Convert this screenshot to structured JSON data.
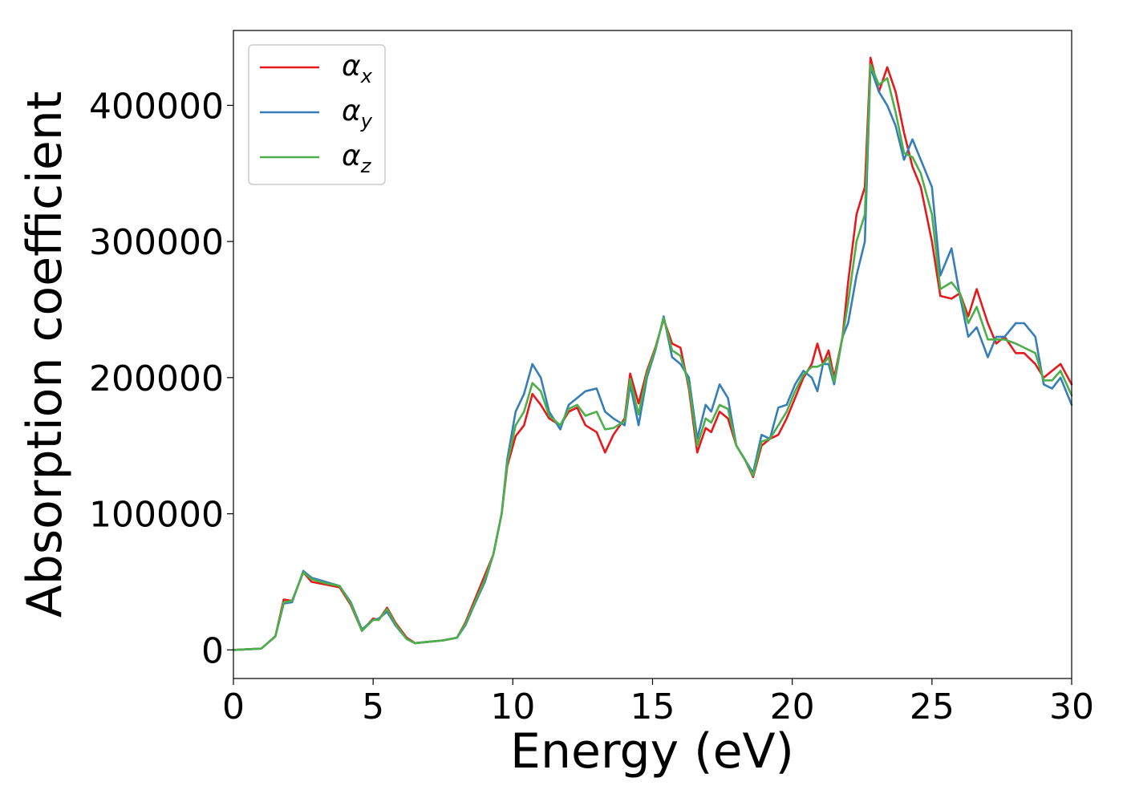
{
  "chart_data": {
    "type": "line",
    "title": "",
    "xlabel": "Energy (eV)",
    "ylabel": "Absorption coefficient",
    "xlim": [
      0,
      30
    ],
    "ylim": [
      -21000,
      455000
    ],
    "xticks": [
      0,
      5,
      10,
      15,
      20,
      25,
      30
    ],
    "yticks": [
      0,
      100000,
      200000,
      300000,
      400000
    ],
    "grid": false,
    "legend_position": "top-left",
    "series": [
      {
        "name": "α",
        "subscript": "x",
        "color": "#e41a1c",
        "points": [
          [
            0,
            0
          ],
          [
            1,
            1000
          ],
          [
            1.5,
            10000
          ],
          [
            1.8,
            37000
          ],
          [
            2.1,
            36000
          ],
          [
            2.5,
            57000
          ],
          [
            2.8,
            50000
          ],
          [
            3.3,
            48000
          ],
          [
            3.8,
            46000
          ],
          [
            4.2,
            33000
          ],
          [
            4.6,
            14000
          ],
          [
            5.0,
            23000
          ],
          [
            5.2,
            22000
          ],
          [
            5.5,
            31000
          ],
          [
            5.8,
            20000
          ],
          [
            6.2,
            9000
          ],
          [
            6.5,
            5000
          ],
          [
            7.0,
            6000
          ],
          [
            7.5,
            7000
          ],
          [
            8.0,
            9000
          ],
          [
            8.3,
            20000
          ],
          [
            8.6,
            35000
          ],
          [
            9.0,
            55000
          ],
          [
            9.3,
            70000
          ],
          [
            9.6,
            100000
          ],
          [
            9.8,
            135000
          ],
          [
            10.1,
            157000
          ],
          [
            10.4,
            165000
          ],
          [
            10.7,
            188000
          ],
          [
            11.0,
            180000
          ],
          [
            11.3,
            170000
          ],
          [
            11.7,
            165000
          ],
          [
            12.0,
            175000
          ],
          [
            12.3,
            178000
          ],
          [
            12.6,
            165000
          ],
          [
            13.0,
            160000
          ],
          [
            13.3,
            145000
          ],
          [
            13.6,
            158000
          ],
          [
            14.0,
            170000
          ],
          [
            14.2,
            203000
          ],
          [
            14.5,
            181000
          ],
          [
            14.8,
            205000
          ],
          [
            15.1,
            222000
          ],
          [
            15.4,
            243000
          ],
          [
            15.7,
            225000
          ],
          [
            16.0,
            222000
          ],
          [
            16.3,
            192000
          ],
          [
            16.6,
            145000
          ],
          [
            16.9,
            163000
          ],
          [
            17.1,
            160000
          ],
          [
            17.4,
            175000
          ],
          [
            17.7,
            170000
          ],
          [
            18.0,
            150000
          ],
          [
            18.3,
            140000
          ],
          [
            18.6,
            127000
          ],
          [
            18.9,
            150000
          ],
          [
            19.2,
            155000
          ],
          [
            19.5,
            158000
          ],
          [
            19.8,
            170000
          ],
          [
            20.1,
            185000
          ],
          [
            20.4,
            200000
          ],
          [
            20.7,
            210000
          ],
          [
            20.9,
            225000
          ],
          [
            21.1,
            210000
          ],
          [
            21.3,
            220000
          ],
          [
            21.5,
            200000
          ],
          [
            21.8,
            230000
          ],
          [
            22.0,
            270000
          ],
          [
            22.3,
            320000
          ],
          [
            22.6,
            340000
          ],
          [
            22.8,
            435000
          ],
          [
            23.1,
            410000
          ],
          [
            23.4,
            428000
          ],
          [
            23.7,
            410000
          ],
          [
            24.0,
            380000
          ],
          [
            24.3,
            355000
          ],
          [
            24.6,
            340000
          ],
          [
            25.0,
            300000
          ],
          [
            25.3,
            260000
          ],
          [
            25.7,
            258000
          ],
          [
            26.0,
            262000
          ],
          [
            26.3,
            245000
          ],
          [
            26.6,
            265000
          ],
          [
            27.0,
            240000
          ],
          [
            27.3,
            225000
          ],
          [
            27.6,
            230000
          ],
          [
            28.0,
            218000
          ],
          [
            28.3,
            218000
          ],
          [
            28.7,
            210000
          ],
          [
            29.0,
            200000
          ],
          [
            29.3,
            205000
          ],
          [
            29.6,
            210000
          ],
          [
            30.0,
            195000
          ]
        ]
      },
      {
        "name": "α",
        "subscript": "y",
        "color": "#377eb8",
        "points": [
          [
            0,
            0
          ],
          [
            1,
            1000
          ],
          [
            1.5,
            10000
          ],
          [
            1.8,
            34000
          ],
          [
            2.1,
            35000
          ],
          [
            2.5,
            58000
          ],
          [
            2.8,
            53000
          ],
          [
            3.3,
            50000
          ],
          [
            3.8,
            47000
          ],
          [
            4.2,
            35000
          ],
          [
            4.6,
            15000
          ],
          [
            5.0,
            22000
          ],
          [
            5.2,
            23000
          ],
          [
            5.5,
            28000
          ],
          [
            5.8,
            18000
          ],
          [
            6.2,
            8000
          ],
          [
            6.5,
            5000
          ],
          [
            7.0,
            6000
          ],
          [
            7.5,
            7000
          ],
          [
            8.0,
            9000
          ],
          [
            8.3,
            18000
          ],
          [
            8.6,
            32000
          ],
          [
            9.0,
            50000
          ],
          [
            9.3,
            70000
          ],
          [
            9.6,
            100000
          ],
          [
            9.8,
            140000
          ],
          [
            10.1,
            175000
          ],
          [
            10.4,
            188000
          ],
          [
            10.7,
            210000
          ],
          [
            11.0,
            200000
          ],
          [
            11.3,
            175000
          ],
          [
            11.7,
            162000
          ],
          [
            12.0,
            180000
          ],
          [
            12.3,
            185000
          ],
          [
            12.6,
            190000
          ],
          [
            13.0,
            192000
          ],
          [
            13.3,
            175000
          ],
          [
            13.6,
            170000
          ],
          [
            14.0,
            165000
          ],
          [
            14.2,
            195000
          ],
          [
            14.5,
            165000
          ],
          [
            14.8,
            200000
          ],
          [
            15.1,
            220000
          ],
          [
            15.4,
            245000
          ],
          [
            15.7,
            215000
          ],
          [
            16.0,
            210000
          ],
          [
            16.3,
            200000
          ],
          [
            16.6,
            155000
          ],
          [
            16.9,
            180000
          ],
          [
            17.1,
            175000
          ],
          [
            17.4,
            195000
          ],
          [
            17.7,
            185000
          ],
          [
            18.0,
            150000
          ],
          [
            18.3,
            140000
          ],
          [
            18.6,
            130000
          ],
          [
            18.9,
            158000
          ],
          [
            19.2,
            155000
          ],
          [
            19.5,
            178000
          ],
          [
            19.8,
            180000
          ],
          [
            20.1,
            195000
          ],
          [
            20.4,
            205000
          ],
          [
            20.7,
            200000
          ],
          [
            20.9,
            190000
          ],
          [
            21.1,
            210000
          ],
          [
            21.3,
            210000
          ],
          [
            21.5,
            195000
          ],
          [
            21.8,
            230000
          ],
          [
            22.0,
            240000
          ],
          [
            22.3,
            275000
          ],
          [
            22.6,
            300000
          ],
          [
            22.8,
            428000
          ],
          [
            23.1,
            410000
          ],
          [
            23.4,
            400000
          ],
          [
            23.7,
            385000
          ],
          [
            24.0,
            360000
          ],
          [
            24.3,
            375000
          ],
          [
            24.6,
            360000
          ],
          [
            25.0,
            340000
          ],
          [
            25.3,
            275000
          ],
          [
            25.7,
            295000
          ],
          [
            26.0,
            260000
          ],
          [
            26.3,
            230000
          ],
          [
            26.6,
            237000
          ],
          [
            27.0,
            215000
          ],
          [
            27.3,
            230000
          ],
          [
            27.6,
            230000
          ],
          [
            28.0,
            240000
          ],
          [
            28.3,
            240000
          ],
          [
            28.7,
            230000
          ],
          [
            29.0,
            195000
          ],
          [
            29.3,
            192000
          ],
          [
            29.6,
            200000
          ],
          [
            30.0,
            180000
          ]
        ]
      },
      {
        "name": "α",
        "subscript": "z",
        "color": "#4daf4a",
        "points": [
          [
            0,
            0
          ],
          [
            1,
            1000
          ],
          [
            1.5,
            10000
          ],
          [
            1.8,
            35000
          ],
          [
            2.1,
            36000
          ],
          [
            2.5,
            57000
          ],
          [
            2.8,
            52000
          ],
          [
            3.3,
            49000
          ],
          [
            3.8,
            47000
          ],
          [
            4.2,
            34000
          ],
          [
            4.6,
            14000
          ],
          [
            5.0,
            22000
          ],
          [
            5.2,
            22000
          ],
          [
            5.5,
            30000
          ],
          [
            5.8,
            19000
          ],
          [
            6.2,
            8000
          ],
          [
            6.5,
            5000
          ],
          [
            7.0,
            6000
          ],
          [
            7.5,
            7000
          ],
          [
            8.0,
            9000
          ],
          [
            8.3,
            19000
          ],
          [
            8.6,
            33000
          ],
          [
            9.0,
            52000
          ],
          [
            9.3,
            70000
          ],
          [
            9.6,
            100000
          ],
          [
            9.8,
            137000
          ],
          [
            10.1,
            165000
          ],
          [
            10.4,
            175000
          ],
          [
            10.7,
            196000
          ],
          [
            11.0,
            190000
          ],
          [
            11.3,
            172000
          ],
          [
            11.7,
            165000
          ],
          [
            12.0,
            177000
          ],
          [
            12.3,
            180000
          ],
          [
            12.6,
            172000
          ],
          [
            13.0,
            175000
          ],
          [
            13.3,
            162000
          ],
          [
            13.6,
            163000
          ],
          [
            14.0,
            168000
          ],
          [
            14.2,
            199000
          ],
          [
            14.5,
            173000
          ],
          [
            14.8,
            203000
          ],
          [
            15.1,
            221000
          ],
          [
            15.4,
            244000
          ],
          [
            15.7,
            220000
          ],
          [
            16.0,
            216000
          ],
          [
            16.3,
            195000
          ],
          [
            16.6,
            150000
          ],
          [
            16.9,
            170000
          ],
          [
            17.1,
            167000
          ],
          [
            17.4,
            180000
          ],
          [
            17.7,
            177000
          ],
          [
            18.0,
            150000
          ],
          [
            18.3,
            140000
          ],
          [
            18.6,
            128000
          ],
          [
            18.9,
            153000
          ],
          [
            19.2,
            155000
          ],
          [
            19.5,
            165000
          ],
          [
            19.8,
            175000
          ],
          [
            20.1,
            190000
          ],
          [
            20.4,
            202000
          ],
          [
            20.7,
            208000
          ],
          [
            20.9,
            208000
          ],
          [
            21.1,
            210000
          ],
          [
            21.3,
            215000
          ],
          [
            21.5,
            197000
          ],
          [
            21.8,
            230000
          ],
          [
            22.0,
            255000
          ],
          [
            22.3,
            300000
          ],
          [
            22.6,
            320000
          ],
          [
            22.8,
            430000
          ],
          [
            23.1,
            415000
          ],
          [
            23.4,
            420000
          ],
          [
            23.7,
            395000
          ],
          [
            24.0,
            365000
          ],
          [
            24.3,
            362000
          ],
          [
            24.6,
            350000
          ],
          [
            25.0,
            320000
          ],
          [
            25.3,
            265000
          ],
          [
            25.7,
            270000
          ],
          [
            26.0,
            262000
          ],
          [
            26.3,
            240000
          ],
          [
            26.6,
            252000
          ],
          [
            27.0,
            228000
          ],
          [
            27.3,
            228000
          ],
          [
            27.6,
            228000
          ],
          [
            28.0,
            225000
          ],
          [
            28.3,
            222000
          ],
          [
            28.7,
            218000
          ],
          [
            29.0,
            198000
          ],
          [
            29.3,
            198000
          ],
          [
            29.6,
            205000
          ],
          [
            30.0,
            187000
          ]
        ]
      }
    ]
  }
}
